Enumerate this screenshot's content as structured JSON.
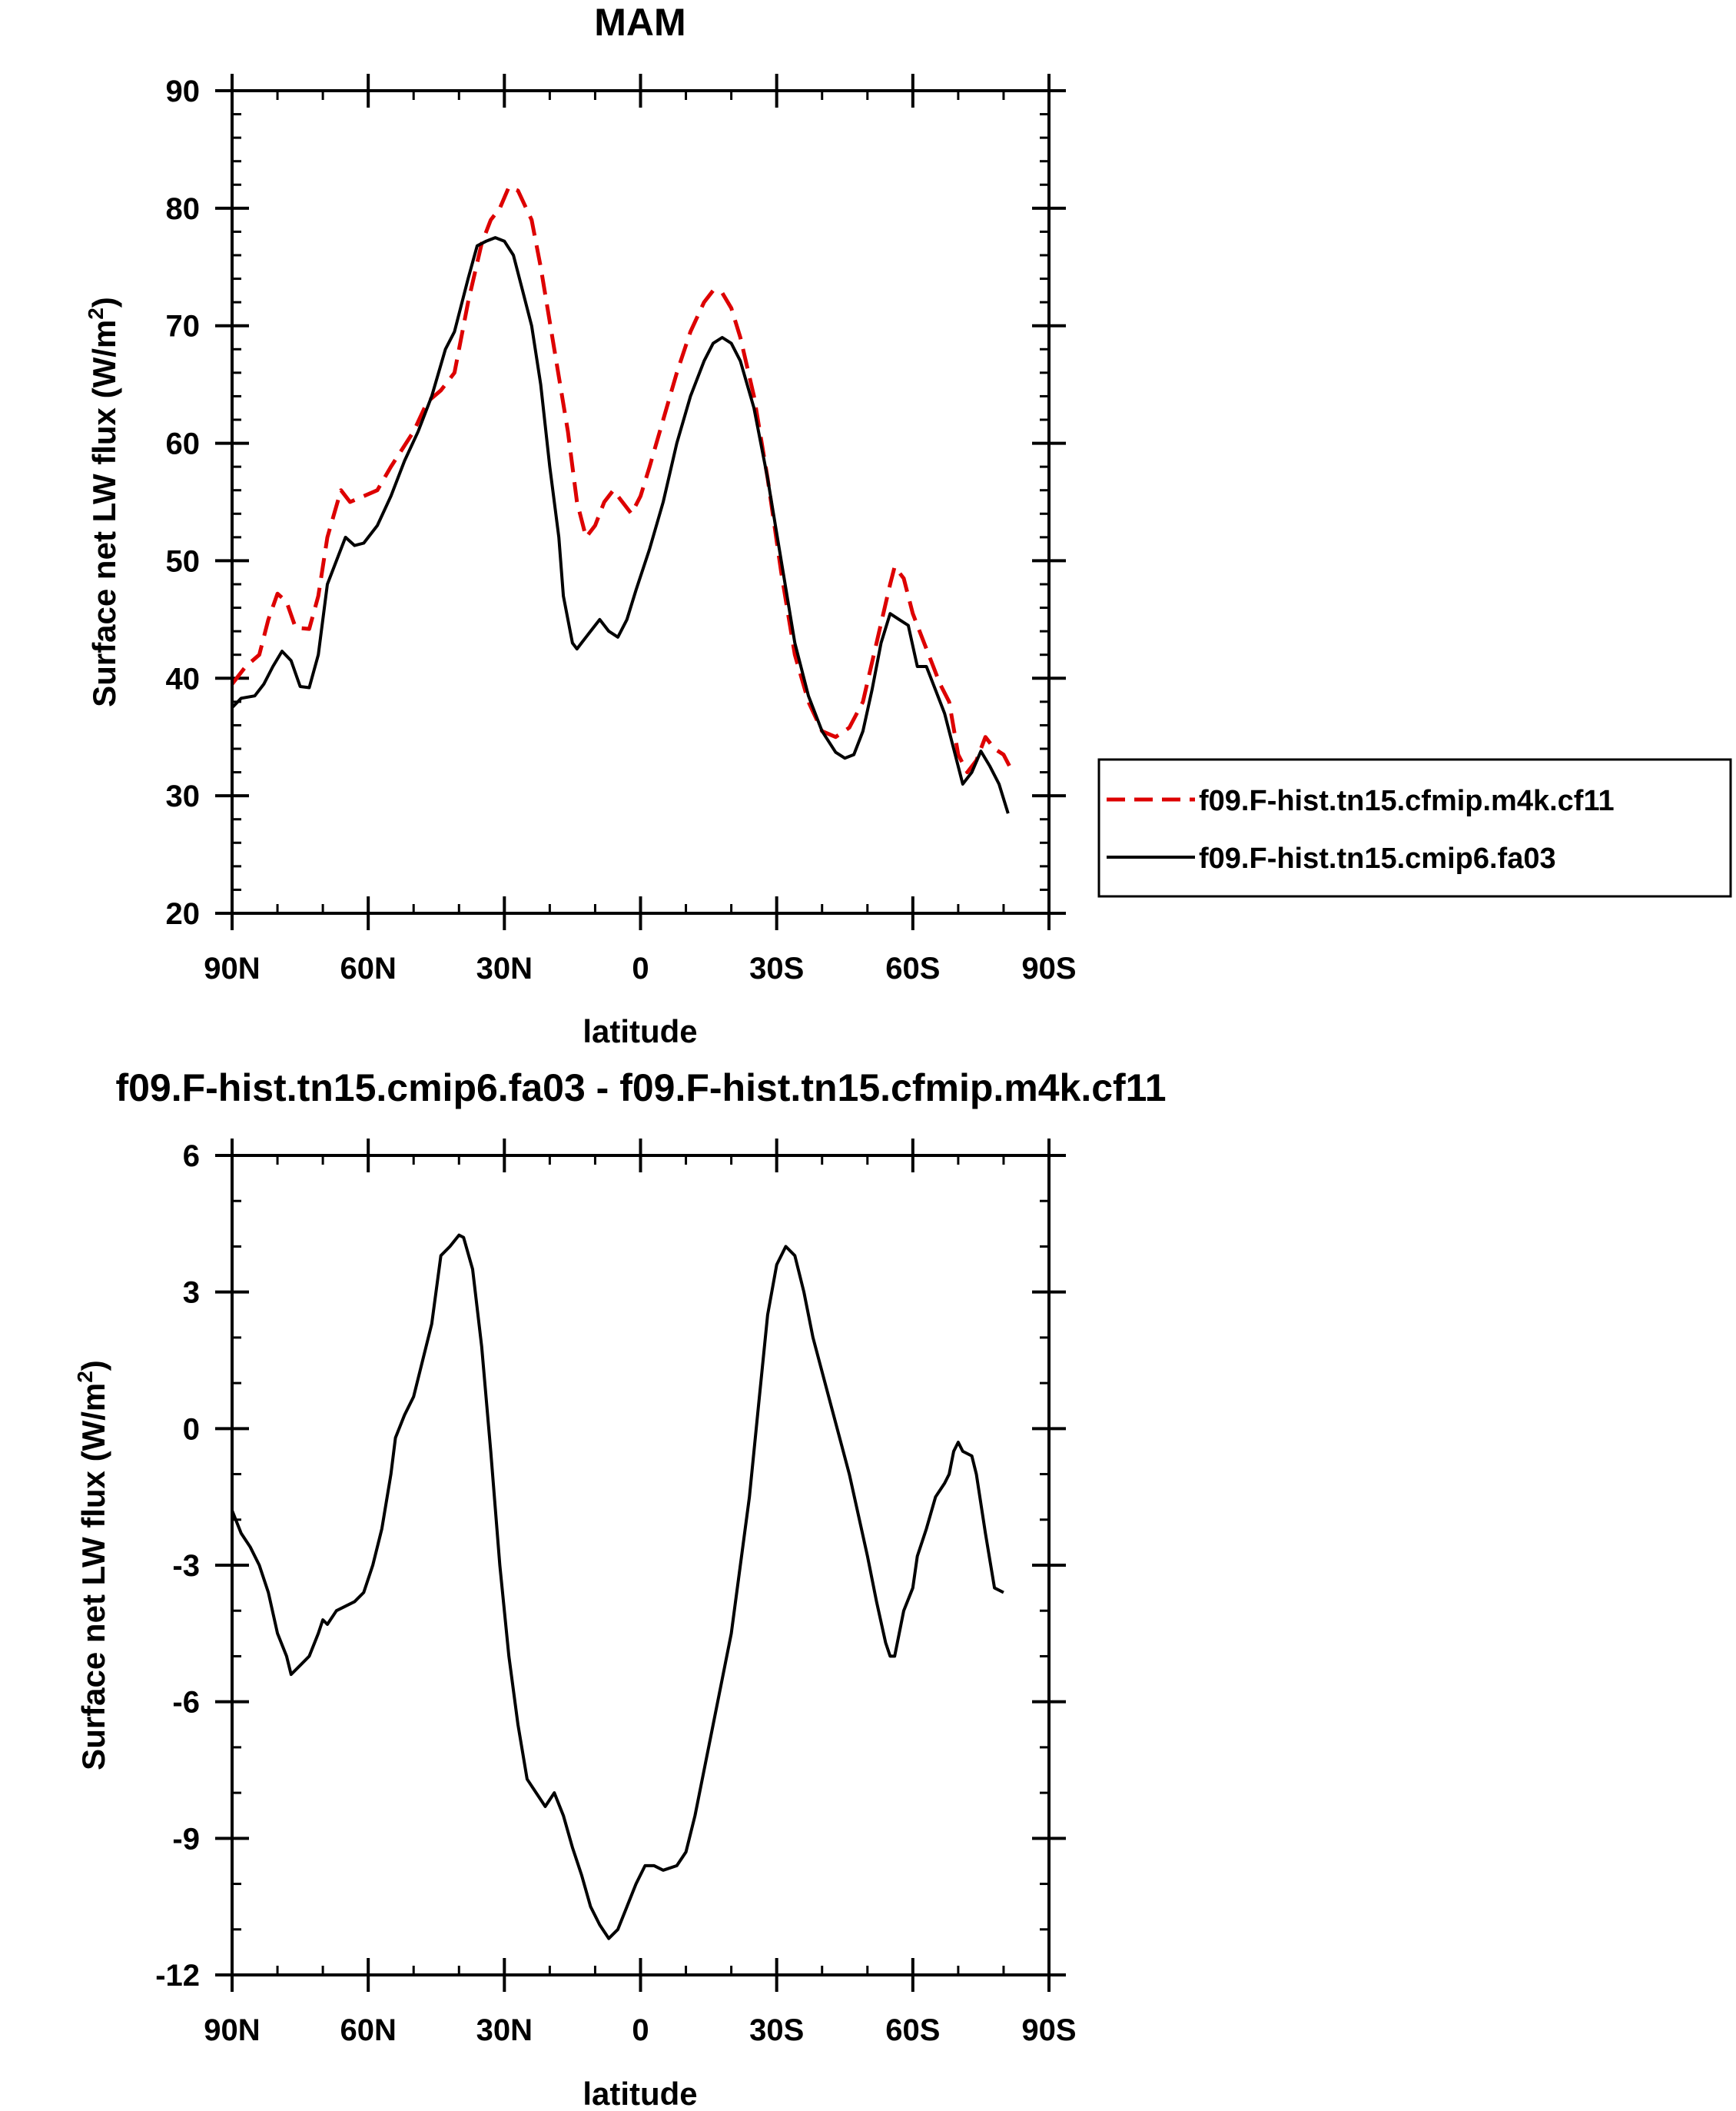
{
  "chart_data": [
    {
      "type": "line",
      "title": "MAM",
      "xlabel": "latitude",
      "ylabel": "Surface net LW flux (W/m",
      "ylabel_sup": "2",
      "ylabel_end": ")",
      "xlim": [
        90,
        -90
      ],
      "ylim": [
        20,
        90
      ],
      "x_ticks": [
        {
          "value": 90,
          "label": "90N"
        },
        {
          "value": 60,
          "label": "60N"
        },
        {
          "value": 30,
          "label": "30N"
        },
        {
          "value": 0,
          "label": "0"
        },
        {
          "value": -30,
          "label": "30S"
        },
        {
          "value": -60,
          "label": "60S"
        },
        {
          "value": -90,
          "label": "90S"
        }
      ],
      "y_ticks": [
        {
          "value": 20,
          "label": "20"
        },
        {
          "value": 30,
          "label": "30"
        },
        {
          "value": 40,
          "label": "40"
        },
        {
          "value": 50,
          "label": "50"
        },
        {
          "value": 60,
          "label": "60"
        },
        {
          "value": 70,
          "label": "70"
        },
        {
          "value": 80,
          "label": "80"
        },
        {
          "value": 90,
          "label": "90"
        }
      ],
      "legend_position": "right",
      "series": [
        {
          "name": "f09.F-hist.tn15.cfmip.m4k.cf11",
          "color": "#dd0000",
          "dash": "dashed",
          "points": [
            [
              90,
              39.5
            ],
            [
              87,
              41
            ],
            [
              84,
              42
            ],
            [
              82,
              45
            ],
            [
              80,
              47.2
            ],
            [
              78,
              46.5
            ],
            [
              76,
              44.3
            ],
            [
              73,
              44.2
            ],
            [
              71,
              47
            ],
            [
              69,
              52
            ],
            [
              66,
              56
            ],
            [
              64,
              55
            ],
            [
              61,
              55.5
            ],
            [
              58,
              56
            ],
            [
              55,
              58
            ],
            [
              50,
              61
            ],
            [
              47,
              63.5
            ],
            [
              44,
              64.5
            ],
            [
              41,
              66
            ],
            [
              38,
              72
            ],
            [
              35,
              77
            ],
            [
              33,
              79
            ],
            [
              31,
              80
            ],
            [
              29,
              81.8
            ],
            [
              27,
              81.5
            ],
            [
              24,
              79
            ],
            [
              22,
              75
            ],
            [
              19,
              68
            ],
            [
              16,
              61
            ],
            [
              14,
              55
            ],
            [
              12,
              52
            ],
            [
              10,
              53
            ],
            [
              8,
              55
            ],
            [
              6,
              56
            ],
            [
              4,
              55
            ],
            [
              2,
              54
            ],
            [
              0,
              55.5
            ],
            [
              -2,
              58
            ],
            [
              -5,
              62
            ],
            [
              -8,
              66
            ],
            [
              -11,
              69.5
            ],
            [
              -14,
              72
            ],
            [
              -16,
              73
            ],
            [
              -18,
              72.8
            ],
            [
              -20,
              71.5
            ],
            [
              -22,
              69
            ],
            [
              -25,
              64
            ],
            [
              -28,
              57
            ],
            [
              -31,
              49
            ],
            [
              -34,
              42
            ],
            [
              -37,
              38
            ],
            [
              -40,
              35.5
            ],
            [
              -43,
              35
            ],
            [
              -46,
              35.8
            ],
            [
              -49,
              38
            ],
            [
              -52,
              43
            ],
            [
              -55,
              48
            ],
            [
              -56,
              49.5
            ],
            [
              -58,
              48.5
            ],
            [
              -60,
              45.5
            ],
            [
              -62,
              43.5
            ],
            [
              -64,
              41.5
            ],
            [
              -66,
              39.5
            ],
            [
              -68,
              38
            ],
            [
              -70,
              33.5
            ],
            [
              -72,
              32
            ],
            [
              -74,
              33
            ],
            [
              -76,
              35
            ],
            [
              -78,
              34
            ],
            [
              -80,
              33.5
            ],
            [
              -82,
              32
            ]
          ]
        },
        {
          "name": "f09.F-hist.tn15.cmip6.fa03",
          "color": "#000000",
          "dash": "solid",
          "points": [
            [
              90,
              37.5
            ],
            [
              88,
              38.3
            ],
            [
              85,
              38.5
            ],
            [
              83,
              39.5
            ],
            [
              81,
              41
            ],
            [
              79,
              42.3
            ],
            [
              77,
              41.5
            ],
            [
              75,
              39.3
            ],
            [
              73,
              39.2
            ],
            [
              71,
              42
            ],
            [
              69,
              48
            ],
            [
              67,
              50
            ],
            [
              65,
              52
            ],
            [
              63,
              51.3
            ],
            [
              61,
              51.5
            ],
            [
              58,
              53
            ],
            [
              55,
              55.5
            ],
            [
              52,
              58.5
            ],
            [
              49,
              61
            ],
            [
              46,
              64
            ],
            [
              43,
              68
            ],
            [
              41,
              69.5
            ],
            [
              38,
              74
            ],
            [
              36,
              76.8
            ],
            [
              34,
              77.2
            ],
            [
              32,
              77.5
            ],
            [
              30,
              77.2
            ],
            [
              28,
              76
            ],
            [
              26,
              73
            ],
            [
              24,
              70
            ],
            [
              22,
              65
            ],
            [
              20,
              58
            ],
            [
              18,
              52
            ],
            [
              17,
              47
            ],
            [
              15,
              43
            ],
            [
              14,
              42.5
            ],
            [
              13,
              43
            ],
            [
              11,
              44
            ],
            [
              9,
              45
            ],
            [
              7,
              44
            ],
            [
              5,
              43.5
            ],
            [
              3,
              45
            ],
            [
              1,
              47.5
            ],
            [
              -2,
              51
            ],
            [
              -5,
              55
            ],
            [
              -8,
              60
            ],
            [
              -11,
              64
            ],
            [
              -14,
              67
            ],
            [
              -16,
              68.5
            ],
            [
              -18,
              69
            ],
            [
              -20,
              68.5
            ],
            [
              -22,
              67
            ],
            [
              -25,
              63
            ],
            [
              -28,
              57
            ],
            [
              -31,
              50
            ],
            [
              -34,
              43
            ],
            [
              -37,
              38.5
            ],
            [
              -40,
              35.5
            ],
            [
              -43,
              33.7
            ],
            [
              -45,
              33.2
            ],
            [
              -47,
              33.5
            ],
            [
              -49,
              35.5
            ],
            [
              -51,
              39
            ],
            [
              -53,
              43
            ],
            [
              -55,
              45.5
            ],
            [
              -57,
              45
            ],
            [
              -59,
              44.5
            ],
            [
              -61,
              41
            ],
            [
              -63,
              41
            ],
            [
              -65,
              39
            ],
            [
              -67,
              37
            ],
            [
              -69,
              34
            ],
            [
              -71,
              31
            ],
            [
              -73,
              32
            ],
            [
              -75,
              33.8
            ],
            [
              -77,
              32.5
            ],
            [
              -79,
              31
            ],
            [
              -81,
              28.5
            ]
          ]
        }
      ]
    },
    {
      "type": "line",
      "title": "f09.F-hist.tn15.cmip6.fa03 - f09.F-hist.tn15.cfmip.m4k.cf11",
      "xlabel": "latitude",
      "ylabel": "Surface net LW flux (W/m",
      "ylabel_sup": "2",
      "ylabel_end": ")",
      "xlim": [
        90,
        -90
      ],
      "ylim": [
        -12,
        6
      ],
      "x_ticks": [
        {
          "value": 90,
          "label": "90N"
        },
        {
          "value": 60,
          "label": "60N"
        },
        {
          "value": 30,
          "label": "30N"
        },
        {
          "value": 0,
          "label": "0"
        },
        {
          "value": -30,
          "label": "30S"
        },
        {
          "value": -60,
          "label": "60S"
        },
        {
          "value": -90,
          "label": "90S"
        }
      ],
      "y_ticks": [
        {
          "value": -12,
          "label": "-12"
        },
        {
          "value": -9,
          "label": "-9"
        },
        {
          "value": -6,
          "label": "-6"
        },
        {
          "value": -3,
          "label": "-3"
        },
        {
          "value": 0,
          "label": "0"
        },
        {
          "value": 3,
          "label": "3"
        },
        {
          "value": 6,
          "label": "6"
        }
      ],
      "series": [
        {
          "color": "#000000",
          "dash": "solid",
          "points": [
            [
              90,
              -1.8
            ],
            [
              88,
              -2.3
            ],
            [
              86,
              -2.6
            ],
            [
              84,
              -3
            ],
            [
              82,
              -3.6
            ],
            [
              80,
              -4.5
            ],
            [
              78,
              -5
            ],
            [
              77,
              -5.4
            ],
            [
              75,
              -5.2
            ],
            [
              73,
              -5
            ],
            [
              71,
              -4.5
            ],
            [
              70,
              -4.2
            ],
            [
              69,
              -4.3
            ],
            [
              67,
              -4
            ],
            [
              65,
              -3.9
            ],
            [
              63,
              -3.8
            ],
            [
              61,
              -3.6
            ],
            [
              59,
              -3
            ],
            [
              57,
              -2.2
            ],
            [
              55,
              -1
            ],
            [
              54,
              -0.2
            ],
            [
              52,
              0.3
            ],
            [
              50,
              0.7
            ],
            [
              48,
              1.5
            ],
            [
              46,
              2.3
            ],
            [
              44,
              3.8
            ],
            [
              42,
              4
            ],
            [
              40,
              4.25
            ],
            [
              39,
              4.2
            ],
            [
              37,
              3.5
            ],
            [
              35,
              1.8
            ],
            [
              33,
              -0.5
            ],
            [
              31,
              -3
            ],
            [
              29,
              -5
            ],
            [
              27,
              -6.5
            ],
            [
              25,
              -7.7
            ],
            [
              23,
              -8
            ],
            [
              21,
              -8.3
            ],
            [
              19,
              -8
            ],
            [
              17,
              -8.5
            ],
            [
              15,
              -9.2
            ],
            [
              13,
              -9.8
            ],
            [
              11,
              -10.5
            ],
            [
              9,
              -10.9
            ],
            [
              7,
              -11.2
            ],
            [
              5,
              -11
            ],
            [
              3,
              -10.5
            ],
            [
              1,
              -10
            ],
            [
              -1,
              -9.6
            ],
            [
              -3,
              -9.6
            ],
            [
              -5,
              -9.7
            ],
            [
              -8,
              -9.6
            ],
            [
              -10,
              -9.3
            ],
            [
              -12,
              -8.5
            ],
            [
              -14,
              -7.5
            ],
            [
              -16,
              -6.5
            ],
            [
              -18,
              -5.5
            ],
            [
              -20,
              -4.5
            ],
            [
              -22,
              -3
            ],
            [
              -24,
              -1.5
            ],
            [
              -26,
              0.5
            ],
            [
              -28,
              2.5
            ],
            [
              -30,
              3.6
            ],
            [
              -32,
              4
            ],
            [
              -34,
              3.8
            ],
            [
              -36,
              3
            ],
            [
              -38,
              2
            ],
            [
              -42,
              0.5
            ],
            [
              -46,
              -1
            ],
            [
              -50,
              -2.8
            ],
            [
              -52,
              -3.8
            ],
            [
              -54,
              -4.7
            ],
            [
              -55,
              -5
            ],
            [
              -56,
              -5
            ],
            [
              -58,
              -4
            ],
            [
              -60,
              -3.5
            ],
            [
              -61,
              -2.8
            ],
            [
              -63,
              -2.2
            ],
            [
              -65,
              -1.5
            ],
            [
              -67,
              -1.2
            ],
            [
              -68,
              -1
            ],
            [
              -69,
              -0.5
            ],
            [
              -70,
              -0.3
            ],
            [
              -71,
              -0.5
            ],
            [
              -73,
              -0.6
            ],
            [
              -74,
              -1
            ],
            [
              -76,
              -2.3
            ],
            [
              -78,
              -3.5
            ],
            [
              -80,
              -3.6
            ]
          ]
        }
      ]
    }
  ]
}
